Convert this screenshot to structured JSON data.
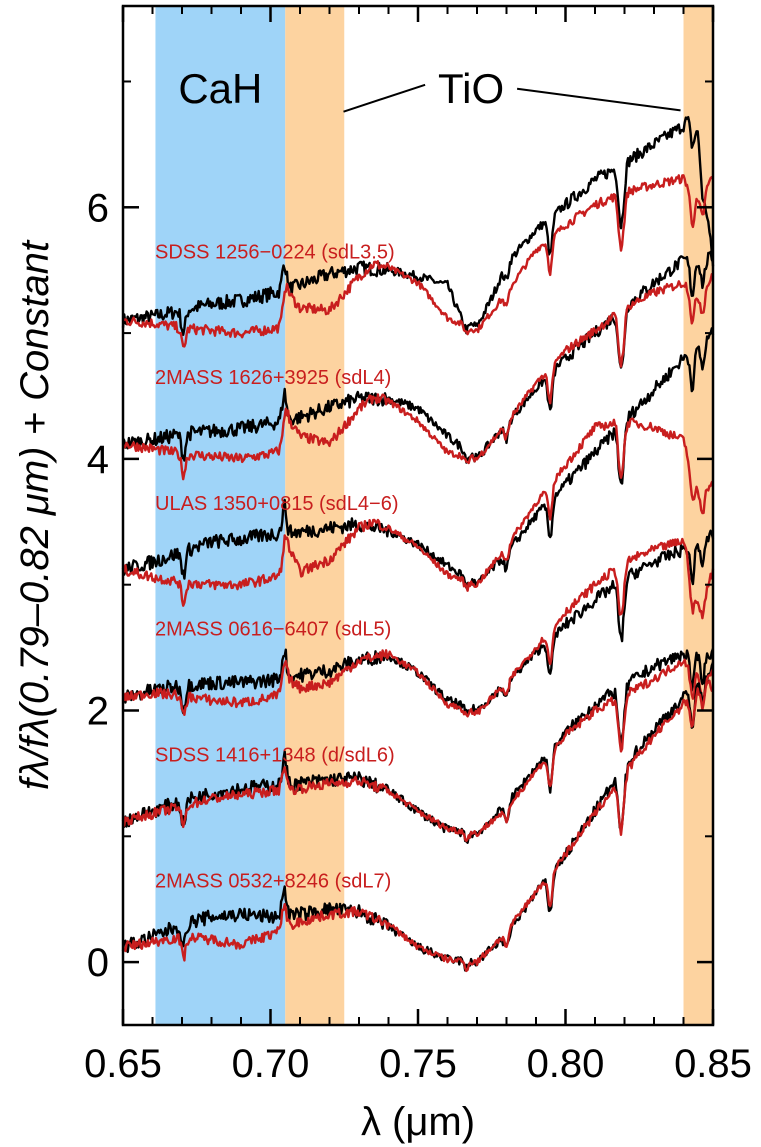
{
  "chart_data": {
    "type": "line",
    "title": "",
    "xlabel": "λ (μm)",
    "ylabel": "fλ/fλ(0.79–0.82 μm) + Constant",
    "xlim": [
      0.65,
      0.85
    ],
    "ylim": [
      -0.5,
      7.6
    ],
    "x_ticks": [
      {
        "value": 0.65,
        "label": "0.65"
      },
      {
        "value": 0.7,
        "label": "0.70"
      },
      {
        "value": 0.75,
        "label": "0.75"
      },
      {
        "value": 0.8,
        "label": "0.80"
      },
      {
        "value": 0.85,
        "label": "0.85"
      }
    ],
    "y_ticks": [
      {
        "value": 0,
        "label": "0"
      },
      {
        "value": 2,
        "label": "2"
      },
      {
        "value": 4,
        "label": "4"
      },
      {
        "value": 6,
        "label": "6"
      }
    ],
    "grid": false,
    "bands": [
      {
        "name": "CaH",
        "range": [
          0.661,
          0.705
        ],
        "color": "#9fd4f8"
      },
      {
        "name": "TiO",
        "range": [
          0.705,
          0.725
        ],
        "color": "#fdd3a0"
      },
      {
        "name": "TiO",
        "range": [
          0.84,
          0.85
        ],
        "color": "#fdd3a0"
      }
    ],
    "band_labels": [
      {
        "text": "CaH",
        "x": 0.683,
        "y": 6.95
      },
      {
        "text": "TiO",
        "x": 0.768,
        "y": 6.95,
        "pointer_to": [
          [
            0.72,
            6.8
          ],
          [
            0.839,
            6.77
          ]
        ]
      }
    ],
    "series_colors": {
      "observed": "#000000",
      "template": "#c81e1e"
    },
    "spectra": [
      {
        "label": "SDSS 1256−0224 (sdL3.5)",
        "label_y": 5.65,
        "observed": {
          "x": [
            0.65,
            0.66,
            0.67,
            0.68,
            0.69,
            0.7,
            0.705,
            0.71,
            0.72,
            0.73,
            0.74,
            0.75,
            0.76,
            0.765,
            0.77,
            0.775,
            0.78,
            0.79,
            0.8,
            0.81,
            0.82,
            0.83,
            0.84,
            0.843,
            0.845,
            0.85
          ],
          "y": [
            5.1,
            5.13,
            5.18,
            5.23,
            5.26,
            5.31,
            5.34,
            5.38,
            5.47,
            5.52,
            5.5,
            5.45,
            5.38,
            5.1,
            5.05,
            5.28,
            5.55,
            5.82,
            6.02,
            6.22,
            6.35,
            6.5,
            6.65,
            6.78,
            6.58,
            5.55
          ]
        },
        "template": {
          "x": [
            0.65,
            0.66,
            0.67,
            0.68,
            0.69,
            0.7,
            0.704,
            0.706,
            0.71,
            0.72,
            0.73,
            0.735,
            0.74,
            0.75,
            0.76,
            0.77,
            0.78,
            0.79,
            0.8,
            0.81,
            0.82,
            0.83,
            0.84,
            0.845,
            0.85
          ],
          "y": [
            5.1,
            5.08,
            5.04,
            5.02,
            5.0,
            5.03,
            5.05,
            5.32,
            5.2,
            5.18,
            5.45,
            5.55,
            5.52,
            5.4,
            5.12,
            5.02,
            5.32,
            5.66,
            5.86,
            6.02,
            6.12,
            6.18,
            6.23,
            6.05,
            6.25
          ]
        }
      },
      {
        "label": "2MASS 1626+3925 (sdL4)",
        "label_y": 4.65,
        "observed": {
          "x": [
            0.65,
            0.66,
            0.67,
            0.68,
            0.69,
            0.7,
            0.71,
            0.72,
            0.73,
            0.74,
            0.75,
            0.76,
            0.77,
            0.78,
            0.79,
            0.8,
            0.81,
            0.82,
            0.83,
            0.84,
            0.85
          ],
          "y": [
            4.12,
            4.15,
            4.2,
            4.22,
            4.24,
            4.28,
            4.33,
            4.41,
            4.48,
            4.48,
            4.4,
            4.18,
            4.0,
            4.28,
            4.56,
            4.8,
            5.0,
            5.2,
            5.4,
            5.58,
            5.6
          ]
        },
        "template": {
          "x": [
            0.65,
            0.66,
            0.67,
            0.68,
            0.69,
            0.7,
            0.704,
            0.706,
            0.71,
            0.72,
            0.73,
            0.735,
            0.74,
            0.75,
            0.76,
            0.77,
            0.78,
            0.79,
            0.8,
            0.81,
            0.82,
            0.83,
            0.84,
            0.845,
            0.85
          ],
          "y": [
            4.12,
            4.08,
            4.04,
            4.02,
            4.0,
            4.04,
            4.07,
            4.32,
            4.18,
            4.12,
            4.4,
            4.49,
            4.46,
            4.3,
            4.05,
            4.0,
            4.28,
            4.6,
            4.86,
            5.02,
            5.2,
            5.32,
            5.4,
            5.3,
            5.45
          ]
        }
      },
      {
        "label": "ULAS 1350+0815 (sdL4−6)",
        "label_y": 3.65,
        "observed": {
          "x": [
            0.65,
            0.66,
            0.67,
            0.68,
            0.69,
            0.7,
            0.71,
            0.72,
            0.73,
            0.74,
            0.75,
            0.76,
            0.77,
            0.78,
            0.79,
            0.8,
            0.81,
            0.82,
            0.83,
            0.84,
            0.85
          ],
          "y": [
            3.12,
            3.18,
            3.26,
            3.34,
            3.36,
            3.4,
            3.42,
            3.45,
            3.48,
            3.43,
            3.32,
            3.15,
            3.0,
            3.25,
            3.55,
            3.8,
            4.05,
            4.3,
            4.55,
            4.8,
            5.0
          ]
        },
        "template": {
          "x": [
            0.65,
            0.66,
            0.67,
            0.68,
            0.69,
            0.7,
            0.704,
            0.706,
            0.71,
            0.72,
            0.73,
            0.735,
            0.74,
            0.75,
            0.76,
            0.77,
            0.78,
            0.79,
            0.8,
            0.81,
            0.82,
            0.83,
            0.84,
            0.845,
            0.85
          ],
          "y": [
            3.12,
            3.06,
            3.02,
            3.0,
            3.0,
            3.05,
            3.08,
            3.3,
            3.1,
            3.2,
            3.45,
            3.5,
            3.45,
            3.3,
            3.08,
            3.0,
            3.3,
            3.65,
            3.95,
            4.25,
            4.3,
            4.25,
            4.15,
            3.75,
            3.8
          ]
        }
      },
      {
        "label": "2MASS 0616−6407 (sdL5)",
        "label_y": 2.65,
        "observed": {
          "x": [
            0.65,
            0.66,
            0.67,
            0.68,
            0.69,
            0.7,
            0.71,
            0.72,
            0.73,
            0.74,
            0.75,
            0.76,
            0.77,
            0.78,
            0.79,
            0.8,
            0.81,
            0.82,
            0.83,
            0.84,
            0.85
          ],
          "y": [
            2.1,
            2.16,
            2.2,
            2.22,
            2.22,
            2.24,
            2.28,
            2.32,
            2.4,
            2.44,
            2.3,
            2.08,
            2.0,
            2.22,
            2.46,
            2.68,
            2.88,
            3.05,
            3.18,
            3.28,
            3.4
          ]
        },
        "template": {
          "x": [
            0.65,
            0.66,
            0.67,
            0.68,
            0.69,
            0.7,
            0.704,
            0.706,
            0.71,
            0.72,
            0.73,
            0.74,
            0.75,
            0.76,
            0.77,
            0.78,
            0.79,
            0.8,
            0.81,
            0.82,
            0.83,
            0.84,
            0.845,
            0.85
          ],
          "y": [
            2.1,
            2.14,
            2.12,
            2.08,
            2.06,
            2.1,
            2.14,
            2.25,
            2.18,
            2.22,
            2.4,
            2.45,
            2.3,
            2.05,
            1.98,
            2.22,
            2.5,
            2.78,
            3.0,
            3.18,
            3.28,
            3.35,
            2.85,
            3.1
          ]
        }
      },
      {
        "label": "SDSS 1416+1348 (d/sdL6)",
        "label_y": 1.65,
        "observed": {
          "x": [
            0.65,
            0.66,
            0.67,
            0.68,
            0.69,
            0.7,
            0.71,
            0.72,
            0.73,
            0.74,
            0.75,
            0.76,
            0.77,
            0.78,
            0.79,
            0.8,
            0.81,
            0.82,
            0.83,
            0.84,
            0.85
          ],
          "y": [
            1.12,
            1.2,
            1.28,
            1.34,
            1.38,
            1.4,
            1.42,
            1.45,
            1.46,
            1.36,
            1.2,
            1.05,
            1.02,
            1.25,
            1.55,
            1.82,
            2.05,
            2.2,
            2.35,
            2.45,
            2.45
          ]
        },
        "template": {
          "x": [
            0.65,
            0.66,
            0.67,
            0.68,
            0.69,
            0.7,
            0.71,
            0.72,
            0.73,
            0.74,
            0.75,
            0.76,
            0.77,
            0.78,
            0.79,
            0.8,
            0.81,
            0.82,
            0.83,
            0.84,
            0.845,
            0.85
          ],
          "y": [
            1.12,
            1.18,
            1.24,
            1.3,
            1.33,
            1.36,
            1.38,
            1.42,
            1.44,
            1.36,
            1.2,
            1.06,
            1.02,
            1.22,
            1.52,
            1.8,
            2.0,
            2.12,
            2.25,
            2.4,
            2.3,
            2.18
          ]
        }
      },
      {
        "label": "2MASS 0532+8246 (sdL7)",
        "label_y": 0.65,
        "observed": {
          "x": [
            0.65,
            0.66,
            0.67,
            0.68,
            0.69,
            0.7,
            0.71,
            0.72,
            0.73,
            0.74,
            0.75,
            0.76,
            0.77,
            0.78,
            0.79,
            0.8,
            0.81,
            0.82,
            0.83,
            0.84,
            0.85
          ],
          "y": [
            0.12,
            0.2,
            0.3,
            0.36,
            0.38,
            0.36,
            0.38,
            0.42,
            0.4,
            0.28,
            0.12,
            0.02,
            0.0,
            0.22,
            0.55,
            0.85,
            1.2,
            1.55,
            1.85,
            2.1,
            2.35
          ]
        },
        "template": {
          "x": [
            0.65,
            0.66,
            0.67,
            0.68,
            0.69,
            0.7,
            0.71,
            0.72,
            0.73,
            0.74,
            0.75,
            0.76,
            0.77,
            0.78,
            0.79,
            0.8,
            0.81,
            0.82,
            0.83,
            0.84,
            0.85
          ],
          "y": [
            0.12,
            0.16,
            0.2,
            0.18,
            0.14,
            0.22,
            0.32,
            0.38,
            0.4,
            0.3,
            0.12,
            0.02,
            0.0,
            0.24,
            0.56,
            0.86,
            1.18,
            1.5,
            1.8,
            2.05,
            2.3
          ]
        }
      }
    ]
  }
}
